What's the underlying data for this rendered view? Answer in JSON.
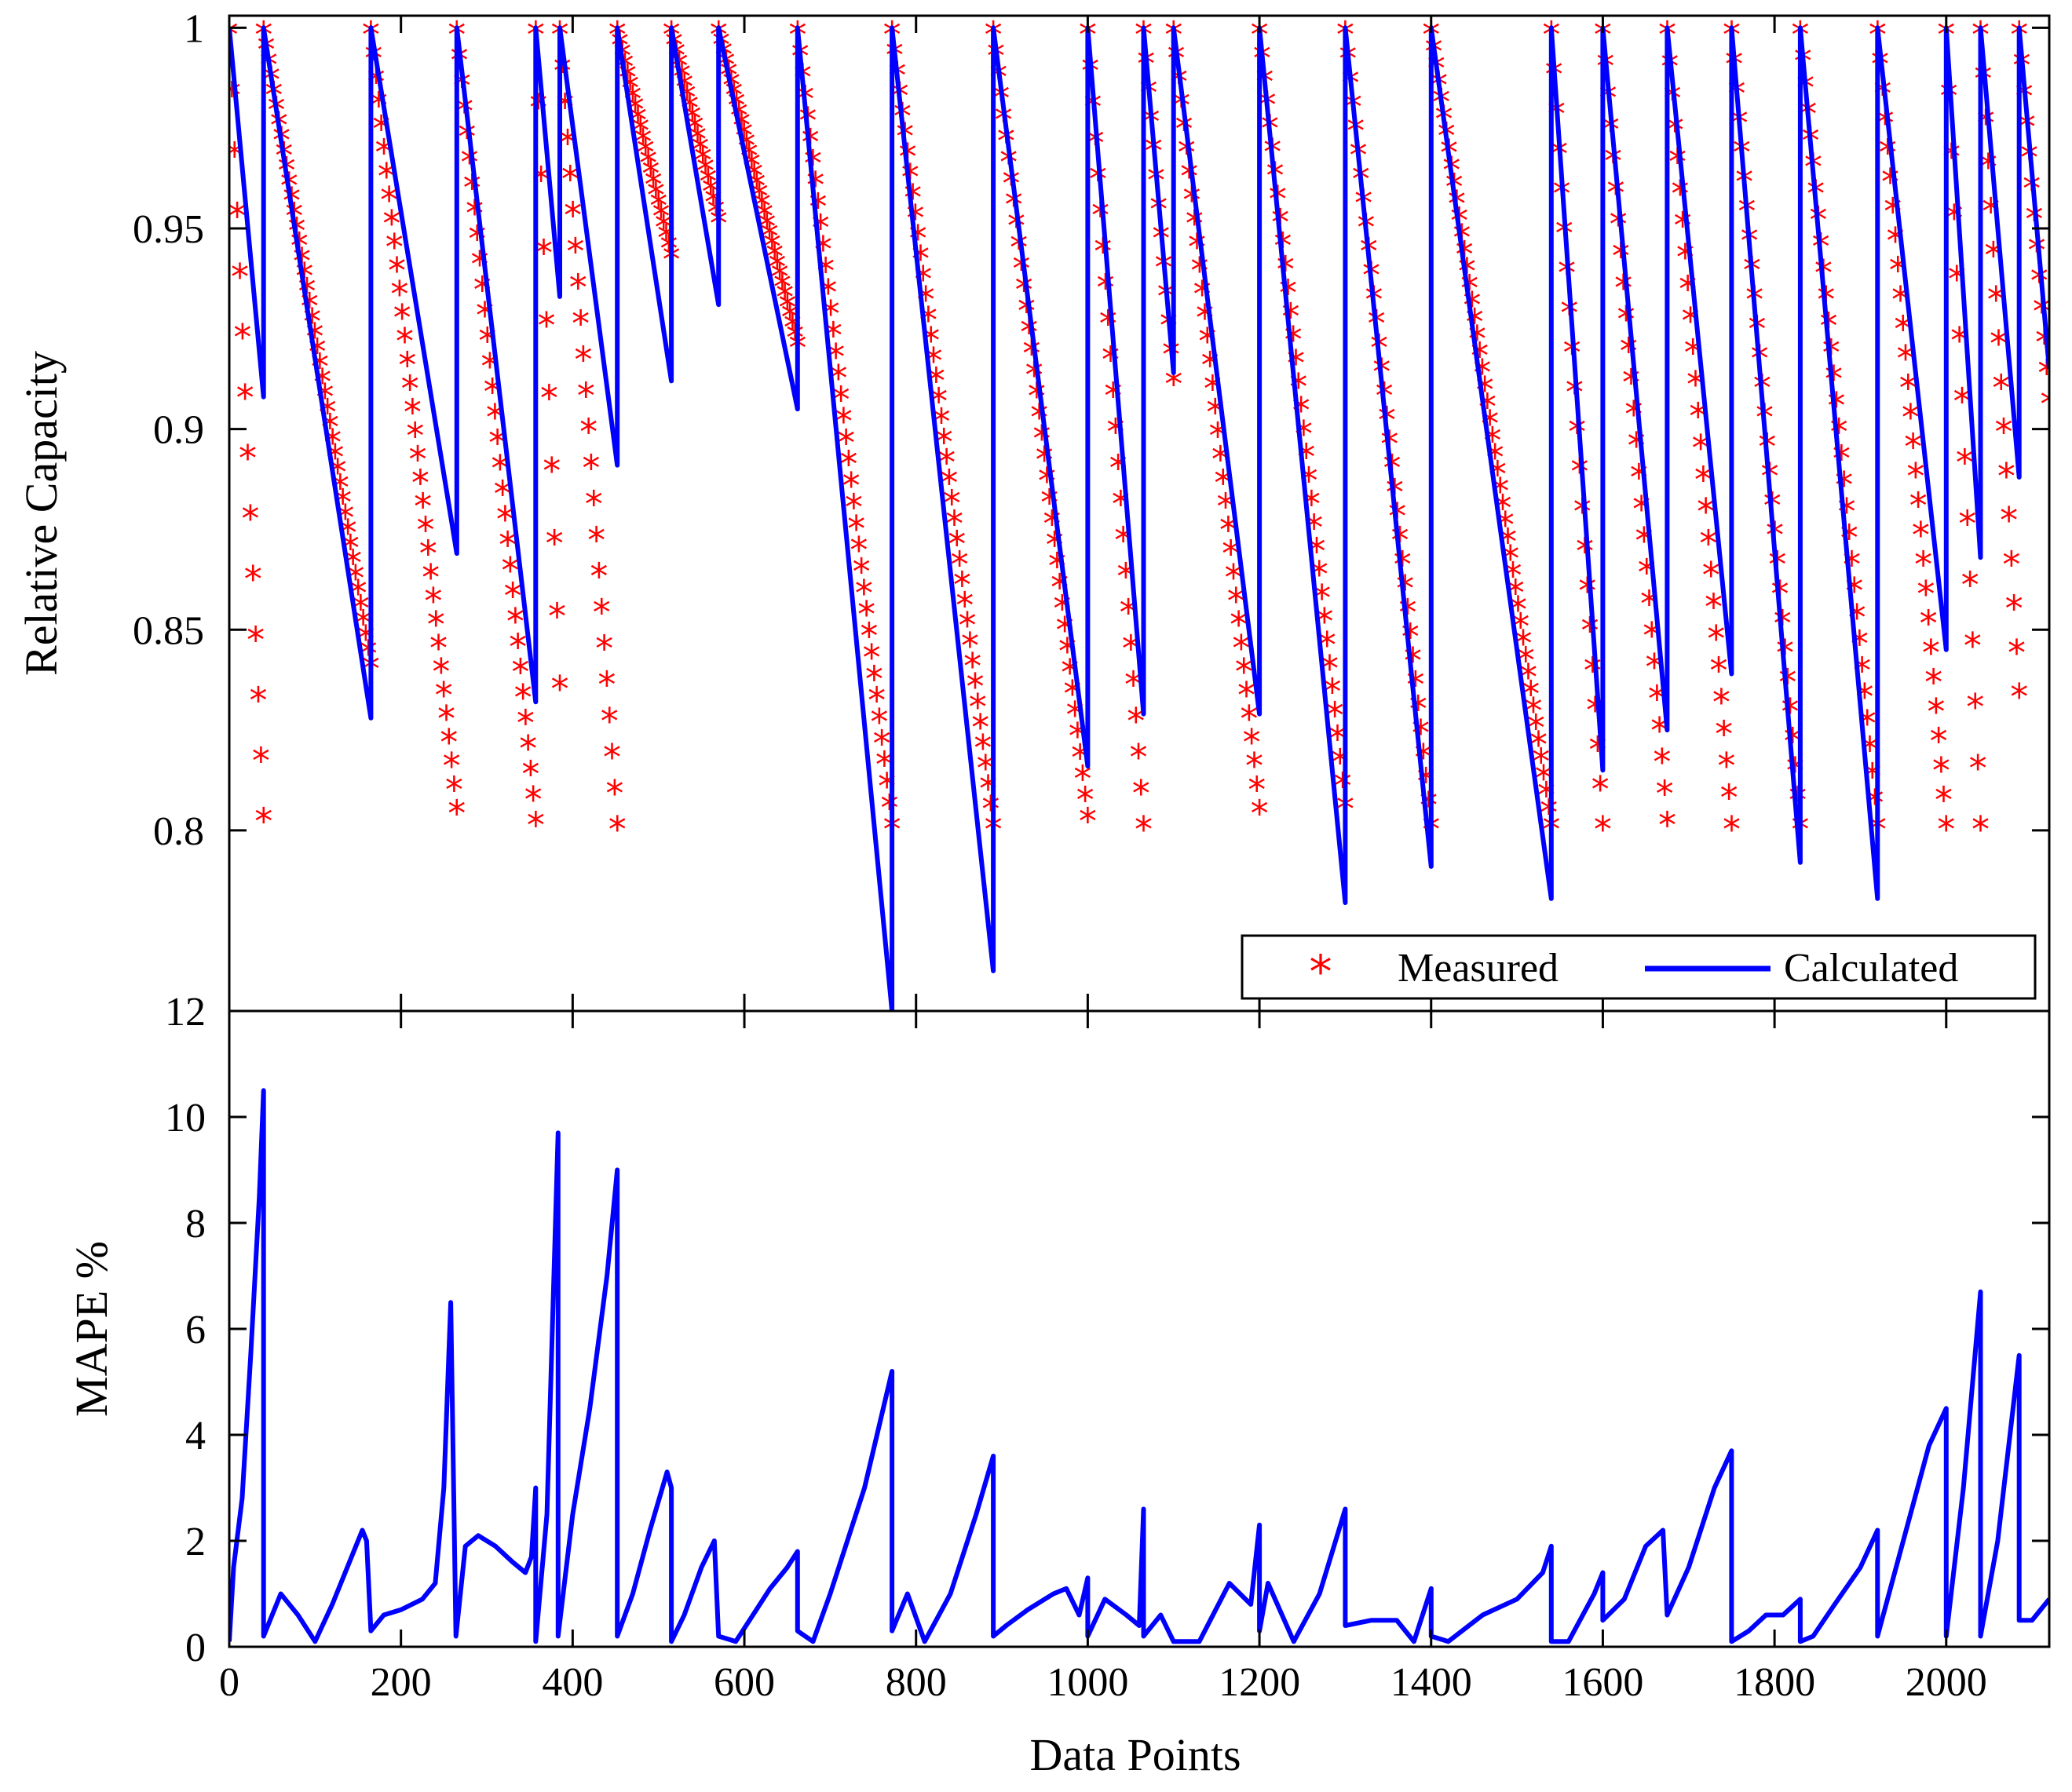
{
  "chart_data": [
    {
      "type": "line",
      "ylabel": "Relative Capacity",
      "xlabel": "",
      "xlim": [
        0,
        2120
      ],
      "ylim": [
        0.755,
        1.003
      ],
      "x_ticks": [
        0,
        200,
        400,
        600,
        800,
        1000,
        1200,
        1400,
        1600,
        1800,
        2000
      ],
      "y_ticks": [
        0.8,
        0.85,
        0.9,
        0.95,
        1
      ],
      "y_tick_labels": [
        "0.8",
        "0.85",
        "0.9",
        "0.95",
        "1"
      ],
      "legend": {
        "position": "bottom-right",
        "entries": [
          "Measured",
          "Calculated"
        ]
      },
      "series": [
        {
          "name": "Measured",
          "style": "markers",
          "marker": "*",
          "color": "#ff0000",
          "segments": [
            [
              0,
              40,
              0.999,
              0.803
            ],
            [
              40,
              165,
              0.999,
              0.841
            ],
            [
              165,
              265,
              0.999,
              0.805
            ],
            [
              265,
              357,
              0.999,
              0.802
            ],
            [
              357,
              385,
              0.999,
              0.836
            ],
            [
              385,
              452,
              0.999,
              0.801
            ],
            [
              452,
              515,
              0.999,
              0.943
            ],
            [
              515,
              570,
              0.999,
              0.952
            ],
            [
              570,
              662,
              0.999,
              0.921
            ],
            [
              662,
              772,
              0.999,
              0.801
            ],
            [
              772,
              890,
              0.999,
              0.801
            ],
            [
              890,
              1000,
              0.999,
              0.803
            ],
            [
              1000,
              1065,
              0.999,
              0.801
            ],
            [
              1065,
              1100,
              0.999,
              0.912
            ],
            [
              1100,
              1200,
              0.999,
              0.805
            ],
            [
              1200,
              1300,
              0.999,
              0.806
            ],
            [
              1300,
              1400,
              0.999,
              0.801
            ],
            [
              1400,
              1540,
              0.999,
              0.801
            ],
            [
              1540,
              1600,
              0.999,
              0.801
            ],
            [
              1600,
              1675,
              0.999,
              0.802
            ],
            [
              1675,
              1750,
              0.999,
              0.801
            ],
            [
              1750,
              1830,
              0.999,
              0.801
            ],
            [
              1830,
              1920,
              0.999,
              0.801
            ],
            [
              1920,
              2000,
              0.999,
              0.801
            ],
            [
              2000,
              2040,
              0.999,
              0.801
            ],
            [
              2040,
              2085,
              0.999,
              0.834
            ],
            [
              2085,
              2120,
              0.999,
              0.907
            ]
          ]
        },
        {
          "name": "Calculated",
          "style": "line",
          "color": "#0000ff",
          "x": [
            0,
            40,
            40,
            165,
            165,
            265,
            265,
            357,
            357,
            385,
            385,
            452,
            452,
            515,
            515,
            570,
            570,
            662,
            662,
            772,
            772,
            890,
            890,
            1000,
            1000,
            1065,
            1065,
            1100,
            1100,
            1200,
            1200,
            1300,
            1300,
            1400,
            1400,
            1540,
            1540,
            1600,
            1600,
            1675,
            1675,
            1750,
            1750,
            1830,
            1830,
            1920,
            1920,
            2000,
            2000,
            2040,
            2040,
            2085,
            2085,
            2120
          ],
          "y": [
            1.0,
            0.908,
            1.0,
            0.828,
            1.0,
            0.869,
            1.0,
            0.832,
            1.0,
            0.933,
            1.0,
            0.891,
            1.0,
            0.912,
            1.0,
            0.931,
            1.0,
            0.905,
            1.0,
            0.755,
            1.0,
            0.765,
            1.0,
            0.816,
            1.0,
            0.829,
            1.0,
            0.914,
            1.0,
            0.829,
            1.0,
            0.782,
            1.0,
            0.791,
            1.0,
            0.783,
            1.0,
            0.815,
            1.0,
            0.825,
            1.0,
            0.839,
            1.0,
            0.792,
            1.0,
            0.783,
            1.0,
            0.845,
            1.0,
            0.868,
            1.0,
            0.888,
            1.0,
            0.915
          ]
        }
      ]
    },
    {
      "type": "line",
      "ylabel": "MAPE %",
      "xlabel": "Data Points",
      "xlim": [
        0,
        2120
      ],
      "ylim": [
        0,
        12
      ],
      "x_ticks": [
        0,
        200,
        400,
        600,
        800,
        1000,
        1200,
        1400,
        1600,
        1800,
        2000
      ],
      "y_ticks": [
        0,
        2,
        4,
        6,
        8,
        10,
        12
      ],
      "series": [
        {
          "style": "line",
          "color": "#0000ff",
          "x": [
            0,
            5,
            15,
            25,
            35,
            40,
            40,
            60,
            80,
            100,
            120,
            140,
            155,
            160,
            165,
            165,
            180,
            200,
            225,
            240,
            250,
            258,
            264,
            264,
            275,
            290,
            310,
            330,
            345,
            352,
            357,
            357,
            370,
            383,
            383,
            400,
            420,
            440,
            452,
            452,
            470,
            490,
            510,
            515,
            515,
            530,
            550,
            565,
            570,
            570,
            590,
            610,
            630,
            650,
            662,
            662,
            680,
            700,
            740,
            772,
            772,
            790,
            810,
            840,
            870,
            890,
            890,
            905,
            930,
            960,
            975,
            990,
            1000,
            1000,
            1020,
            1045,
            1060,
            1065,
            1065,
            1085,
            1100,
            1100,
            1130,
            1165,
            1190,
            1200,
            1200,
            1210,
            1240,
            1270,
            1300,
            1300,
            1330,
            1360,
            1380,
            1400,
            1400,
            1420,
            1460,
            1500,
            1530,
            1540,
            1540,
            1560,
            1590,
            1600,
            1600,
            1625,
            1650,
            1670,
            1675,
            1675,
            1700,
            1730,
            1750,
            1750,
            1770,
            1790,
            1810,
            1830,
            1830,
            1845,
            1870,
            1900,
            1920,
            1920,
            1950,
            1980,
            2000,
            2000,
            2020,
            2040,
            2040,
            2060,
            2085,
            2085,
            2100,
            2120
          ],
          "y": [
            0.1,
            1.5,
            2.8,
            5.5,
            8.5,
            10.5,
            0.2,
            1.0,
            0.6,
            0.1,
            0.8,
            1.6,
            2.2,
            2.0,
            0.3,
            0.3,
            0.6,
            0.7,
            0.9,
            1.2,
            3.0,
            6.5,
            0.2,
            0.2,
            1.9,
            2.1,
            1.9,
            1.6,
            1.4,
            1.7,
            3.0,
            0.1,
            2.5,
            9.7,
            0.2,
            2.5,
            4.5,
            7.0,
            9.0,
            0.2,
            1.0,
            2.2,
            3.3,
            3.0,
            0.1,
            0.6,
            1.5,
            2.0,
            0.2,
            0.2,
            0.1,
            0.6,
            1.1,
            1.5,
            1.8,
            0.3,
            0.1,
            1.0,
            3.0,
            5.2,
            0.3,
            1.0,
            0.1,
            1.0,
            2.5,
            3.6,
            0.2,
            0.4,
            0.7,
            1.0,
            1.1,
            0.6,
            1.3,
            0.2,
            0.9,
            0.6,
            0.4,
            2.6,
            0.2,
            0.6,
            0.1,
            0.1,
            0.1,
            1.2,
            0.8,
            2.3,
            0.3,
            1.2,
            0.1,
            1.0,
            2.6,
            0.4,
            0.5,
            0.5,
            0.1,
            1.1,
            0.2,
            0.1,
            0.6,
            0.9,
            1.4,
            1.9,
            0.1,
            0.1,
            1.0,
            1.4,
            0.5,
            0.9,
            1.9,
            2.2,
            0.6,
            0.6,
            1.5,
            3.0,
            3.7,
            0.1,
            0.3,
            0.6,
            0.6,
            0.9,
            0.1,
            0.2,
            0.8,
            1.5,
            2.2,
            0.2,
            2.0,
            3.8,
            4.5,
            0.2,
            3.0,
            6.7,
            0.2,
            2.0,
            5.5,
            0.5,
            0.5,
            0.9
          ]
        }
      ]
    }
  ]
}
